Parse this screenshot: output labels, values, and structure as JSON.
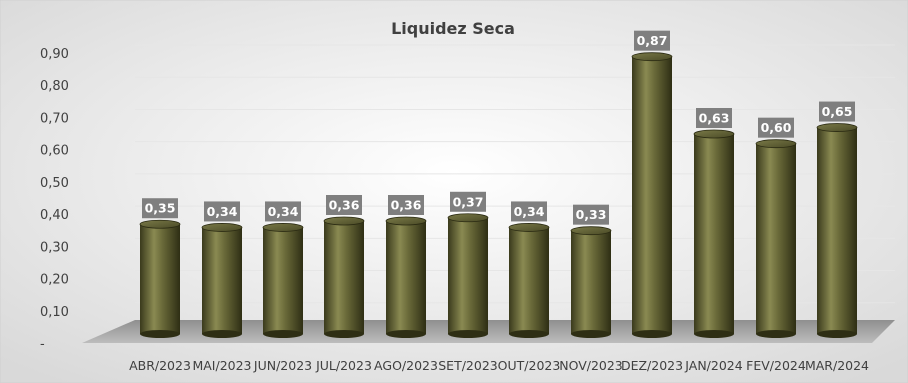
{
  "chart_data": {
    "type": "bar",
    "title": "Liquidez Seca",
    "categories": [
      "ABR/2023",
      "MAI/2023",
      "JUN/2023",
      "JUL/2023",
      "AGO/2023",
      "SET/2023",
      "OUT/2023",
      "NOV/2023",
      "DEZ/2023",
      "JAN/2024",
      "FEV/2024",
      "MAR/2024"
    ],
    "values": [
      0.35,
      0.34,
      0.34,
      0.36,
      0.36,
      0.37,
      0.34,
      0.33,
      0.87,
      0.63,
      0.6,
      0.65
    ],
    "data_labels": [
      "0,35",
      "0,34",
      "0,34",
      "0,36",
      "0,36",
      "0,37",
      "0,34",
      "0,33",
      "0,87",
      "0,63",
      "0,60",
      "0,65"
    ],
    "y_ticks": [
      {
        "value": 0,
        "label": "-"
      },
      {
        "value": 0.1,
        "label": "0,10"
      },
      {
        "value": 0.2,
        "label": "0,20"
      },
      {
        "value": 0.3,
        "label": "0,30"
      },
      {
        "value": 0.4,
        "label": "0,40"
      },
      {
        "value": 0.5,
        "label": "0,50"
      },
      {
        "value": 0.6,
        "label": "0,60"
      },
      {
        "value": 0.7,
        "label": "0,70"
      },
      {
        "value": 0.8,
        "label": "0,80"
      },
      {
        "value": 0.9,
        "label": "0,90"
      }
    ],
    "ylim": [
      0,
      0.9
    ],
    "xlabel": "",
    "ylabel": "",
    "grid": true,
    "legend": "none",
    "style": "3d-cylinder",
    "colors": {
      "bar_dark": "#3a3a1c",
      "bar_mid": "#6b6b3a",
      "bar_light": "#9a9a62",
      "label_bg": "#7f7f7f",
      "label_text": "#ffffff",
      "floor": "#a6a6a6",
      "grid": "#e6e6e6",
      "text": "#404040"
    }
  }
}
